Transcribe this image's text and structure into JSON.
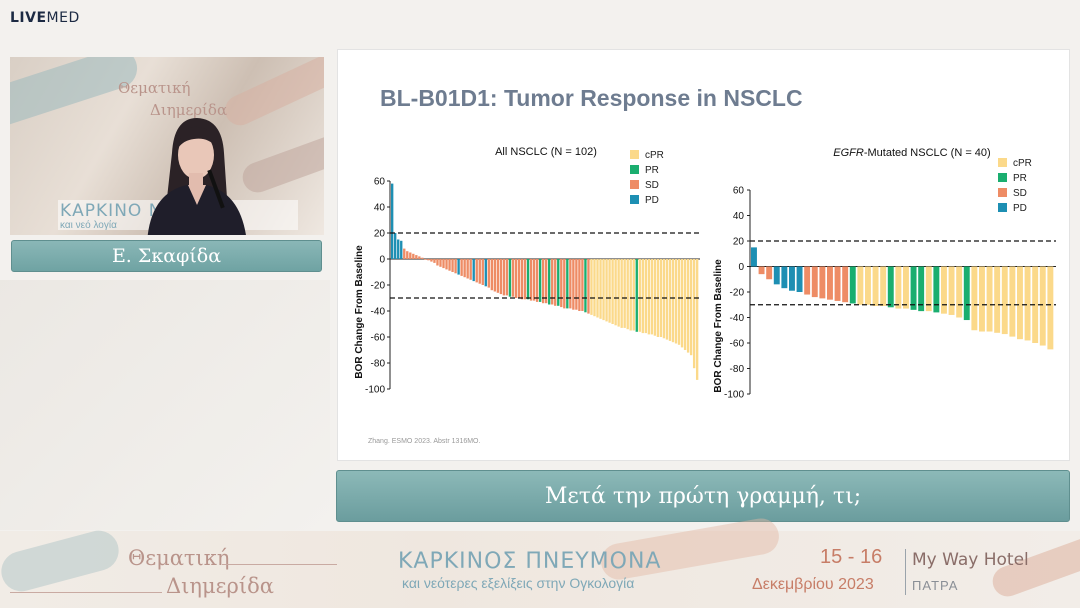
{
  "brand": {
    "live": "LIVE",
    "med": "MED"
  },
  "video": {
    "wall_text_1": "Θεματική",
    "wall_text_2": "Διημερίδα",
    "banner_text": "ΚΑΡΚΙΝΟ   ΝΑ",
    "banner_sub": "και νεό                    λογία"
  },
  "speaker": {
    "name": "Ε. Σκαφίδα"
  },
  "slide": {
    "title": "BL-B01D1: Tumor Response in NSCLC",
    "footnote": "Zhang. ESMO 2023. Abstr 1316MO."
  },
  "chart_data": [
    {
      "type": "bar",
      "title": "All NSCLC (N = 102)",
      "ylabel": "BOR Change From Baseline",
      "ylim": [
        -100,
        60
      ],
      "yticks": [
        60,
        40,
        20,
        0,
        -20,
        -40,
        -60,
        -80,
        -100
      ],
      "reference_lines": [
        20,
        -30
      ],
      "legend": [
        {
          "label": "cPR",
          "color": "#fbd98a"
        },
        {
          "label": "PR",
          "color": "#1aae6f"
        },
        {
          "label": "SD",
          "color": "#ee8c65"
        },
        {
          "label": "PD",
          "color": "#1d8fb3"
        }
      ],
      "values": [
        58,
        20,
        15,
        14,
        8,
        6,
        5,
        4,
        3,
        2,
        1,
        0,
        -1,
        -2,
        -3,
        -5,
        -6,
        -7,
        -8,
        -9,
        -10,
        -11,
        -12,
        -13,
        -14,
        -15,
        -16,
        -17,
        -18,
        -19,
        -20,
        -21,
        -22,
        -24,
        -25,
        -26,
        -27,
        -28,
        -28,
        -29,
        -29,
        -30,
        -30,
        -31,
        -31,
        -31,
        -32,
        -32,
        -33,
        -33,
        -34,
        -34,
        -35,
        -35,
        -36,
        -36,
        -37,
        -38,
        -38,
        -38,
        -39,
        -39,
        -40,
        -40,
        -41,
        -42,
        -43,
        -44,
        -45,
        -46,
        -47,
        -48,
        -49,
        -50,
        -51,
        -52,
        -53,
        -53,
        -54,
        -55,
        -55,
        -56,
        -56,
        -57,
        -57,
        -58,
        -58,
        -59,
        -60,
        -60,
        -61,
        -62,
        -63,
        -64,
        -65,
        -66,
        -68,
        -70,
        -72,
        -74,
        -84,
        -93
      ],
      "categories": [
        "PD",
        "PD",
        "PD",
        "PD",
        "SD",
        "SD",
        "SD",
        "SD",
        "SD",
        "SD",
        "SD",
        "SD",
        "SD",
        "SD",
        "SD",
        "SD",
        "SD",
        "SD",
        "SD",
        "SD",
        "SD",
        "SD",
        "PD",
        "SD",
        "SD",
        "SD",
        "SD",
        "PD",
        "SD",
        "SD",
        "SD",
        "PD",
        "SD",
        "SD",
        "SD",
        "SD",
        "SD",
        "SD",
        "SD",
        "PR",
        "SD",
        "SD",
        "SD",
        "SD",
        "SD",
        "PR",
        "SD",
        "SD",
        "SD",
        "PR",
        "SD",
        "SD",
        "PR",
        "SD",
        "SD",
        "PR",
        "SD",
        "SD",
        "PR",
        "SD",
        "SD",
        "SD",
        "SD",
        "SD",
        "PR",
        "SD",
        "cPR",
        "cPR",
        "cPR",
        "cPR",
        "cPR",
        "cPR",
        "cPR",
        "cPR",
        "cPR",
        "cPR",
        "cPR",
        "cPR",
        "cPR",
        "cPR",
        "cPR",
        "PR",
        "cPR",
        "cPR",
        "cPR",
        "cPR",
        "cPR",
        "cPR",
        "cPR",
        "cPR",
        "cPR",
        "cPR",
        "cPR",
        "cPR",
        "cPR",
        "cPR",
        "cPR",
        "cPR",
        "cPR",
        "cPR",
        "cPR",
        "cPR"
      ]
    },
    {
      "type": "bar",
      "title_italic": "EGFR",
      "title_rest": "-Mutated NSCLC (N = 40)",
      "ylabel": "BOR Change From Baseline",
      "ylim": [
        -100,
        60
      ],
      "yticks": [
        60,
        40,
        20,
        0,
        -20,
        -40,
        -60,
        -80,
        -100
      ],
      "reference_lines": [
        20,
        -30
      ],
      "legend": [
        {
          "label": "cPR",
          "color": "#fbd98a"
        },
        {
          "label": "PR",
          "color": "#1aae6f"
        },
        {
          "label": "SD",
          "color": "#ee8c65"
        },
        {
          "label": "PD",
          "color": "#1d8fb3"
        }
      ],
      "values": [
        15,
        -6,
        -10,
        -14,
        -17,
        -19,
        -20,
        -22,
        -24,
        -25,
        -26,
        -27,
        -28,
        -29,
        -30,
        -30,
        -31,
        -31,
        -32,
        -33,
        -33,
        -34,
        -35,
        -35,
        -36,
        -37,
        -38,
        -40,
        -42,
        -50,
        -51,
        -51,
        -52,
        -53,
        -55,
        -57,
        -58,
        -60,
        -62,
        -65
      ],
      "categories": [
        "PD",
        "SD",
        "SD",
        "PD",
        "PD",
        "PD",
        "PD",
        "SD",
        "SD",
        "SD",
        "SD",
        "SD",
        "SD",
        "PR",
        "cPR",
        "cPR",
        "cPR",
        "cPR",
        "PR",
        "cPR",
        "cPR",
        "PR",
        "PR",
        "cPR",
        "PR",
        "cPR",
        "cPR",
        "cPR",
        "PR",
        "cPR",
        "cPR",
        "cPR",
        "cPR",
        "cPR",
        "cPR",
        "cPR",
        "cPR",
        "cPR",
        "cPR",
        "cPR"
      ]
    }
  ],
  "subtitle": "Μετά την πρώτη γραμμή, τι;",
  "footer": {
    "event_line1": "Θεματική",
    "event_line2": "Διημερίδα",
    "logo_main": "ΚΑΡΚΙΝΟΣ ΠΝΕΥΜΟΝΑ",
    "logo_sub": "και νεότερες εξελίξεις στην Ογκολογία",
    "dates": "15 - 16",
    "month_year": "Δεκεμβρίου 2023",
    "hotel": "My Way Hotel",
    "city": "ΠΑΤΡΑ"
  },
  "colors": {
    "teal_bar": "#7aacac",
    "cPR": "#fbd98a",
    "PR": "#1aae6f",
    "SD": "#ee8c65",
    "PD": "#1d8fb3"
  }
}
